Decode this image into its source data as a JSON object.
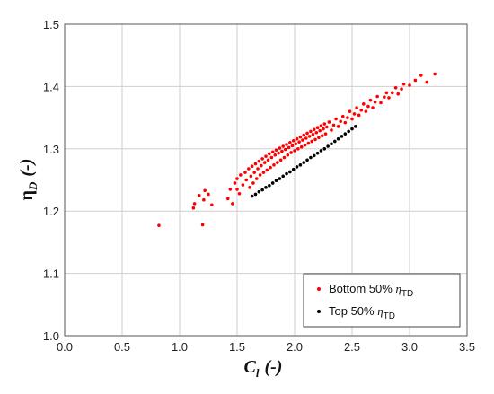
{
  "chart_data": {
    "type": "scatter",
    "xlabel": "C_l (-)",
    "ylabel": "η_D (-)",
    "xlabel_parts": {
      "symbol": "C",
      "sub": "l",
      "unit": "(-)"
    },
    "ylabel_parts": {
      "symbol": "η",
      "sub": "D",
      "unit": "(-)"
    },
    "xlim": [
      0.0,
      3.5
    ],
    "ylim": [
      1.0,
      1.5
    ],
    "x_ticks": [
      "0.0",
      "0.5",
      "1.0",
      "1.5",
      "2.0",
      "2.5",
      "3.0",
      "3.5"
    ],
    "y_ticks": [
      "1.0",
      "1.1",
      "1.2",
      "1.3",
      "1.4",
      "1.5"
    ],
    "grid": true,
    "legend_position": "bottom-right",
    "series": [
      {
        "name": "Bottom 50% η_TD",
        "name_parts": {
          "text": "Bottom 50% ",
          "symbol": "η",
          "sub": "TD"
        },
        "color": "#ff0000",
        "x": [
          0.82,
          1.12,
          1.13,
          1.17,
          1.2,
          1.21,
          1.22,
          1.25,
          1.28,
          1.42,
          1.44,
          1.46,
          1.48,
          1.5,
          1.5,
          1.52,
          1.53,
          1.55,
          1.57,
          1.58,
          1.6,
          1.61,
          1.62,
          1.63,
          1.64,
          1.65,
          1.66,
          1.67,
          1.68,
          1.69,
          1.7,
          1.71,
          1.72,
          1.73,
          1.74,
          1.75,
          1.76,
          1.77,
          1.78,
          1.79,
          1.8,
          1.81,
          1.82,
          1.83,
          1.84,
          1.85,
          1.86,
          1.87,
          1.88,
          1.89,
          1.9,
          1.91,
          1.92,
          1.93,
          1.94,
          1.95,
          1.96,
          1.97,
          1.98,
          1.99,
          2.0,
          2.01,
          2.02,
          2.03,
          2.04,
          2.05,
          2.06,
          2.07,
          2.08,
          2.09,
          2.1,
          2.11,
          2.12,
          2.13,
          2.14,
          2.15,
          2.16,
          2.17,
          2.18,
          2.19,
          2.2,
          2.21,
          2.22,
          2.23,
          2.24,
          2.25,
          2.26,
          2.27,
          2.28,
          2.3,
          2.32,
          2.34,
          2.36,
          2.38,
          2.4,
          2.42,
          2.44,
          2.46,
          2.48,
          2.5,
          2.52,
          2.54,
          2.56,
          2.58,
          2.6,
          2.62,
          2.64,
          2.66,
          2.68,
          2.7,
          2.72,
          2.75,
          2.78,
          2.8,
          2.82,
          2.85,
          2.88,
          2.9,
          2.93,
          2.95,
          3.0,
          3.05,
          3.1,
          3.15,
          3.22
        ],
        "y": [
          1.177,
          1.205,
          1.212,
          1.225,
          1.178,
          1.218,
          1.233,
          1.227,
          1.21,
          1.22,
          1.235,
          1.212,
          1.245,
          1.235,
          1.252,
          1.228,
          1.258,
          1.242,
          1.262,
          1.25,
          1.268,
          1.238,
          1.256,
          1.272,
          1.245,
          1.262,
          1.276,
          1.252,
          1.268,
          1.28,
          1.258,
          1.273,
          1.284,
          1.262,
          1.278,
          1.288,
          1.266,
          1.282,
          1.292,
          1.27,
          1.286,
          1.295,
          1.274,
          1.29,
          1.298,
          1.278,
          1.293,
          1.301,
          1.282,
          1.296,
          1.304,
          1.286,
          1.299,
          1.307,
          1.29,
          1.302,
          1.31,
          1.294,
          1.305,
          1.313,
          1.297,
          1.308,
          1.316,
          1.3,
          1.311,
          1.319,
          1.303,
          1.314,
          1.322,
          1.306,
          1.317,
          1.325,
          1.309,
          1.32,
          1.328,
          1.312,
          1.323,
          1.331,
          1.315,
          1.326,
          1.334,
          1.318,
          1.329,
          1.337,
          1.321,
          1.332,
          1.34,
          1.324,
          1.335,
          1.343,
          1.33,
          1.338,
          1.348,
          1.336,
          1.344,
          1.352,
          1.342,
          1.35,
          1.36,
          1.348,
          1.356,
          1.366,
          1.354,
          1.362,
          1.372,
          1.36,
          1.368,
          1.378,
          1.366,
          1.375,
          1.384,
          1.374,
          1.383,
          1.39,
          1.382,
          1.39,
          1.398,
          1.388,
          1.396,
          1.404,
          1.402,
          1.41,
          1.418,
          1.407,
          1.42
        ]
      },
      {
        "name": "Top 50% η_TD",
        "name_parts": {
          "text": "Top 50% ",
          "symbol": "η",
          "sub": "TD"
        },
        "color": "#000000",
        "x": [
          1.63,
          1.66,
          1.69,
          1.72,
          1.75,
          1.78,
          1.81,
          1.84,
          1.87,
          1.9,
          1.93,
          1.96,
          1.99,
          2.02,
          2.05,
          2.08,
          2.11,
          2.14,
          2.17,
          2.2,
          2.23,
          2.26,
          2.29,
          2.32,
          2.35,
          2.38,
          2.41,
          2.44,
          2.47,
          2.5,
          2.53
        ],
        "y": [
          1.224,
          1.227,
          1.231,
          1.234,
          1.238,
          1.241,
          1.245,
          1.249,
          1.252,
          1.256,
          1.26,
          1.263,
          1.267,
          1.271,
          1.274,
          1.278,
          1.282,
          1.286,
          1.289,
          1.293,
          1.297,
          1.3,
          1.304,
          1.308,
          1.312,
          1.316,
          1.32,
          1.324,
          1.328,
          1.332,
          1.336
        ]
      }
    ]
  }
}
